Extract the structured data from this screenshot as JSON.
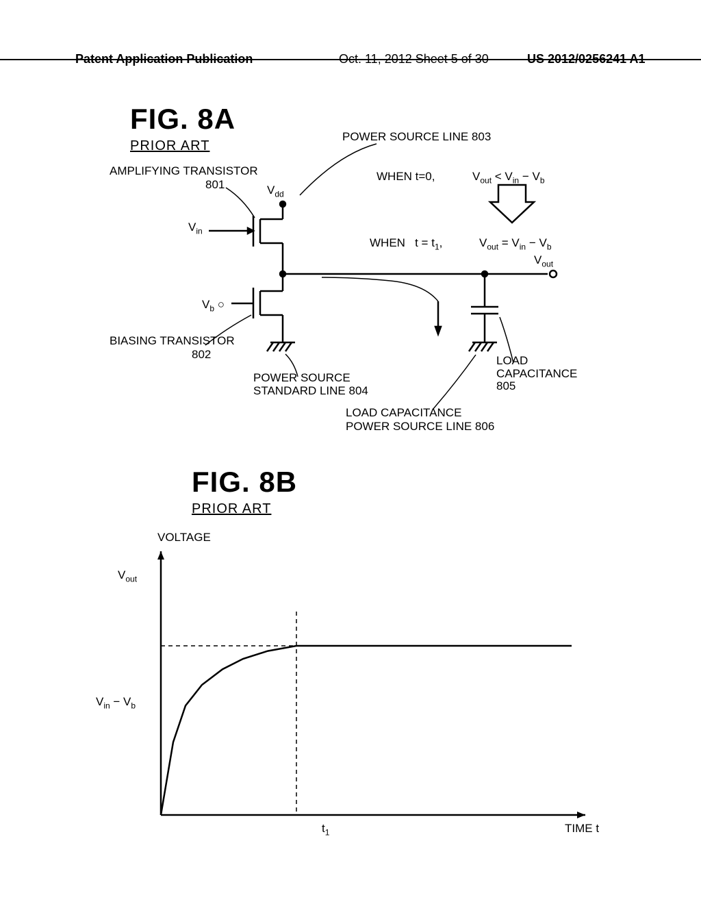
{
  "header": {
    "left": "Patent Application Publication",
    "center": "Oct. 11, 2012  Sheet 5 of 30",
    "right": "US 2012/0256241 A1"
  },
  "fig8a": {
    "title": "FIG. 8A",
    "subtitle": "PRIOR ART",
    "labels": {
      "power_source_line": "POWER SOURCE LINE  803",
      "amp_transistor": "AMPLIFYING TRANSISTOR",
      "amp_num": "801",
      "vdd": "Vdd",
      "vin": "Vin",
      "vb": "Vb",
      "biasing_transistor": "BIASING TRANSISTOR",
      "biasing_num": "802",
      "power_std_line1": "POWER SOURCE",
      "power_std_line2": "STANDARD LINE  804",
      "vout": "Vout",
      "load_cap1": "LOAD",
      "load_cap2": "CAPACITANCE",
      "load_cap_num": "805",
      "load_cap_pwr1": "LOAD CAPACITANCE",
      "load_cap_pwr2": "POWER SOURCE LINE  806",
      "cond1_when": "WHEN   t=0,",
      "cond1_expr": "Vout < Vin − Vb",
      "cond2_when": "WHEN   t = t1,",
      "cond2_expr": "Vout = Vin − Vb"
    }
  },
  "fig8b": {
    "title": "FIG. 8B",
    "subtitle": "PRIOR ART",
    "labels": {
      "voltage": "VOLTAGE",
      "vout": "Vout",
      "vin_vb": "Vin − Vb",
      "t1": "t1",
      "time": "TIME  t"
    },
    "chart": {
      "type": "line",
      "xlim": [
        0,
        10
      ],
      "ylim": [
        0,
        10
      ],
      "curve_points": [
        [
          0.0,
          0.0
        ],
        [
          0.3,
          2.8
        ],
        [
          0.6,
          4.2
        ],
        [
          1.0,
          5.0
        ],
        [
          1.5,
          5.6
        ],
        [
          2.0,
          6.0
        ],
        [
          2.6,
          6.3
        ],
        [
          3.3,
          6.5
        ],
        [
          4.0,
          6.5
        ],
        [
          10.0,
          6.5
        ]
      ],
      "t1_x": 3.3,
      "asymptote_y": 6.5,
      "line_color": "#000000",
      "line_width": 2.5,
      "background_color": "#ffffff",
      "dash_color": "#000000"
    }
  }
}
